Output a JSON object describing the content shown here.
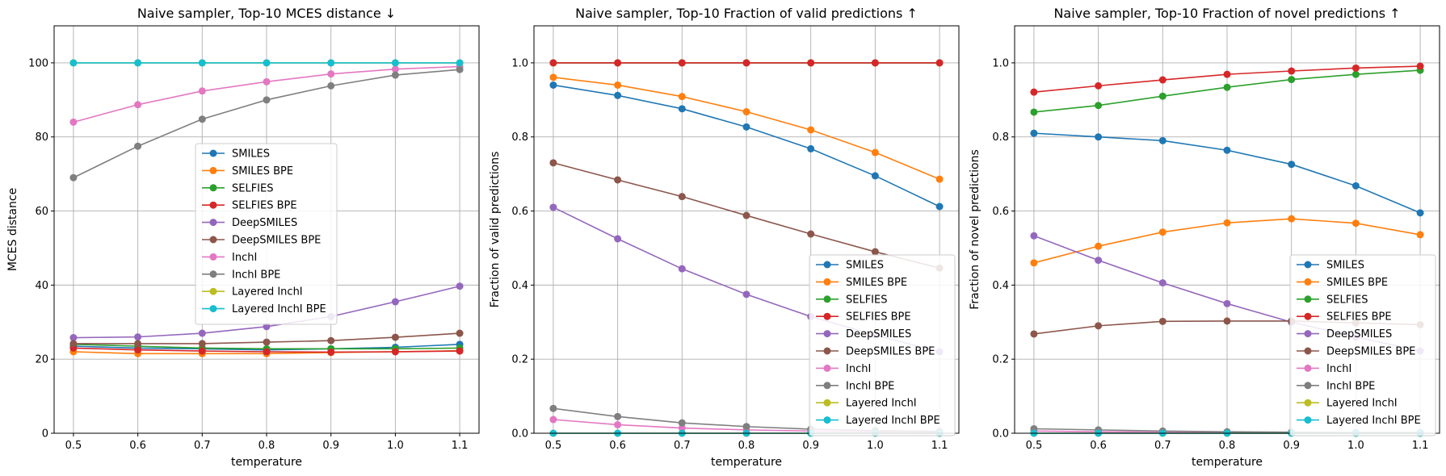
{
  "chart_data": [
    {
      "type": "line",
      "title": "Naive sampler, Top-10 MCES distance ↓",
      "xlabel": "temperature",
      "ylabel": "MCES distance",
      "x": [
        0.5,
        0.6,
        0.7,
        0.8,
        0.9,
        1.0,
        1.1
      ],
      "xticks": [
        "0.5",
        "0.6",
        "0.7",
        "0.8",
        "0.9",
        "1.0",
        "1.1"
      ],
      "yticks": [
        "0",
        "20",
        "40",
        "60",
        "80",
        "100"
      ],
      "ylim": [
        0,
        110
      ],
      "grid": true,
      "legend_position": "center",
      "series": [
        {
          "name": "SMILES",
          "color": "#1f77b4",
          "values": [
            23.5,
            23.0,
            22.8,
            22.5,
            22.8,
            23.2,
            24.0
          ]
        },
        {
          "name": "SMILES BPE",
          "color": "#ff7f0e",
          "values": [
            22.0,
            21.5,
            21.5,
            21.5,
            21.8,
            22.0,
            22.3
          ]
        },
        {
          "name": "SELFIES",
          "color": "#2ca02c",
          "values": [
            24.0,
            23.5,
            23.0,
            22.8,
            22.8,
            22.8,
            23.0
          ]
        },
        {
          "name": "SELFIES BPE",
          "color": "#d62728",
          "values": [
            23.0,
            22.5,
            22.2,
            22.0,
            21.9,
            22.0,
            22.2
          ]
        },
        {
          "name": "DeepSMILES",
          "color": "#9467bd",
          "values": [
            25.8,
            26.0,
            27.0,
            28.8,
            31.5,
            35.5,
            39.7
          ]
        },
        {
          "name": "DeepSMILES BPE",
          "color": "#8c564b",
          "values": [
            24.2,
            24.2,
            24.2,
            24.6,
            25.0,
            25.9,
            27.0
          ]
        },
        {
          "name": "InchI",
          "color": "#e377c2",
          "values": [
            84.0,
            88.7,
            92.4,
            94.9,
            97.0,
            98.3,
            99.0
          ]
        },
        {
          "name": "InchI BPE",
          "color": "#7f7f7f",
          "values": [
            69.0,
            77.5,
            84.8,
            90.0,
            93.8,
            96.7,
            98.2
          ]
        },
        {
          "name": "Layered InchI",
          "color": "#bcbd22",
          "values": [
            100,
            100,
            100,
            100,
            100,
            100,
            100
          ]
        },
        {
          "name": "Layered InchI BPE",
          "color": "#17becf",
          "values": [
            100,
            100,
            100,
            100,
            100,
            100,
            100
          ]
        }
      ]
    },
    {
      "type": "line",
      "title": "Naive sampler, Top-10 Fraction of valid predictions ↑",
      "xlabel": "temperature",
      "ylabel": "Fraction of valid predictions",
      "x": [
        0.5,
        0.6,
        0.7,
        0.8,
        0.9,
        1.0,
        1.1
      ],
      "xticks": [
        "0.5",
        "0.6",
        "0.7",
        "0.8",
        "0.9",
        "1.0",
        "1.1"
      ],
      "yticks": [
        "0.0",
        "0.2",
        "0.4",
        "0.6",
        "0.8",
        "1.0"
      ],
      "ylim": [
        0,
        1.1
      ],
      "grid": true,
      "legend_position": "lower right",
      "series": [
        {
          "name": "SMILES",
          "color": "#1f77b4",
          "values": [
            0.94,
            0.912,
            0.876,
            0.827,
            0.768,
            0.695,
            0.612
          ]
        },
        {
          "name": "SMILES BPE",
          "color": "#ff7f0e",
          "values": [
            0.961,
            0.94,
            0.909,
            0.868,
            0.819,
            0.758,
            0.686
          ]
        },
        {
          "name": "SELFIES",
          "color": "#2ca02c",
          "values": [
            1.0,
            1.0,
            1.0,
            1.0,
            1.0,
            1.0,
            1.0
          ]
        },
        {
          "name": "SELFIES BPE",
          "color": "#d62728",
          "values": [
            1.0,
            1.0,
            1.0,
            1.0,
            1.0,
            1.0,
            1.0
          ]
        },
        {
          "name": "DeepSMILES",
          "color": "#9467bd",
          "values": [
            0.61,
            0.525,
            0.444,
            0.375,
            0.315,
            0.265,
            0.22
          ]
        },
        {
          "name": "DeepSMILES BPE",
          "color": "#8c564b",
          "values": [
            0.73,
            0.684,
            0.639,
            0.588,
            0.538,
            0.49,
            0.446
          ]
        },
        {
          "name": "InchI",
          "color": "#e377c2",
          "values": [
            0.037,
            0.023,
            0.014,
            0.009,
            0.006,
            0.004,
            0.003
          ]
        },
        {
          "name": "InchI BPE",
          "color": "#7f7f7f",
          "values": [
            0.067,
            0.045,
            0.028,
            0.018,
            0.011,
            0.007,
            0.005
          ]
        },
        {
          "name": "Layered InchI",
          "color": "#bcbd22",
          "values": [
            0.0,
            0.0,
            0.0,
            0.0,
            0.0,
            0.0,
            0.0
          ]
        },
        {
          "name": "Layered InchI BPE",
          "color": "#17becf",
          "values": [
            0.0,
            0.0,
            0.0,
            0.0,
            0.0,
            0.0,
            0.0
          ]
        }
      ]
    },
    {
      "type": "line",
      "title": "Naive sampler, Top-10 Fraction of novel predictions ↑",
      "xlabel": "temperature",
      "ylabel": "Fraction of novel predictions",
      "x": [
        0.5,
        0.6,
        0.7,
        0.8,
        0.9,
        1.0,
        1.1
      ],
      "xticks": [
        "0.5",
        "0.6",
        "0.7",
        "0.8",
        "0.9",
        "1.0",
        "1.1"
      ],
      "yticks": [
        "0.0",
        "0.2",
        "0.4",
        "0.6",
        "0.8",
        "1.0"
      ],
      "ylim": [
        0,
        1.1
      ],
      "grid": true,
      "legend_position": "lower right",
      "series": [
        {
          "name": "SMILES",
          "color": "#1f77b4",
          "values": [
            0.81,
            0.8,
            0.79,
            0.764,
            0.726,
            0.668,
            0.595
          ]
        },
        {
          "name": "SMILES BPE",
          "color": "#ff7f0e",
          "values": [
            0.46,
            0.505,
            0.543,
            0.568,
            0.579,
            0.567,
            0.536
          ]
        },
        {
          "name": "SELFIES",
          "color": "#2ca02c",
          "values": [
            0.867,
            0.885,
            0.91,
            0.934,
            0.955,
            0.969,
            0.98
          ]
        },
        {
          "name": "SELFIES BPE",
          "color": "#d62728",
          "values": [
            0.921,
            0.938,
            0.954,
            0.969,
            0.978,
            0.986,
            0.991
          ]
        },
        {
          "name": "DeepSMILES",
          "color": "#9467bd",
          "values": [
            0.533,
            0.467,
            0.406,
            0.35,
            0.3,
            0.26,
            0.222
          ]
        },
        {
          "name": "DeepSMILES BPE",
          "color": "#8c564b",
          "values": [
            0.268,
            0.29,
            0.302,
            0.303,
            0.303,
            0.298,
            0.293
          ]
        },
        {
          "name": "InchI",
          "color": "#e377c2",
          "values": [
            0.006,
            0.004,
            0.003,
            0.002,
            0.002,
            0.001,
            0.001
          ]
        },
        {
          "name": "InchI BPE",
          "color": "#7f7f7f",
          "values": [
            0.012,
            0.009,
            0.006,
            0.004,
            0.003,
            0.002,
            0.002
          ]
        },
        {
          "name": "Layered InchI",
          "color": "#bcbd22",
          "values": [
            0.0,
            0.0,
            0.0,
            0.0,
            0.0,
            0.0,
            0.0
          ]
        },
        {
          "name": "Layered InchI BPE",
          "color": "#17becf",
          "values": [
            0.0,
            0.0,
            0.0,
            0.0,
            0.0,
            0.0,
            0.0
          ]
        }
      ]
    }
  ]
}
